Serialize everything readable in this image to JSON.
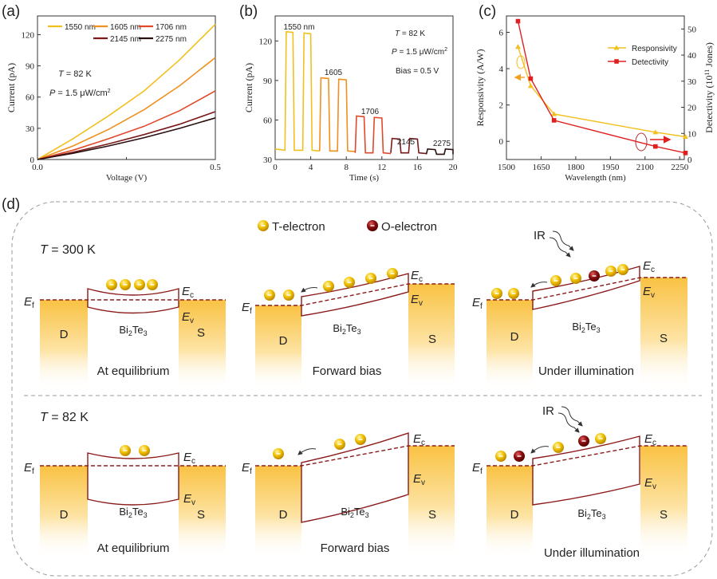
{
  "panel_labels": {
    "a": "(a)",
    "b": "(b)",
    "c": "(c)",
    "d": "(d)"
  },
  "chart_data": [
    {
      "type": "line",
      "xlabel": "Voltage (V)",
      "ylabel": "Current (pA)",
      "xlim": [
        0,
        0.5
      ],
      "ylim": [
        0,
        138
      ],
      "xticks": [
        0,
        0.5
      ],
      "xtick_labels": [
        "0.0",
        "0.5"
      ],
      "yticks": [
        0,
        30,
        60,
        90,
        120
      ],
      "grid": false,
      "legend": "top",
      "x": [
        0,
        0.1,
        0.2,
        0.3,
        0.4,
        0.5
      ],
      "series": [
        {
          "name": "1550 nm",
          "color": "#f2c01e",
          "values": [
            0,
            20,
            42,
            66,
            96,
            130
          ]
        },
        {
          "name": "1605 nm",
          "color": "#f0901e",
          "values": [
            0,
            13,
            29,
            48,
            71,
            98
          ]
        },
        {
          "name": "1706 nm",
          "color": "#e2482a",
          "values": [
            0,
            9,
            20,
            32,
            47,
            66
          ]
        },
        {
          "name": "2145 nm",
          "color": "#7a1a1a",
          "values": [
            0,
            7,
            15,
            24,
            34,
            46
          ]
        },
        {
          "name": "2275 nm",
          "color": "#2a1010",
          "values": [
            0,
            6,
            13,
            21,
            30,
            40
          ]
        }
      ],
      "annotations": [
        {
          "italic": "T",
          "text": " = 82 K"
        },
        {
          "italic": "P",
          "text": " = 1.5 μW/cm",
          "sup": "2"
        }
      ]
    },
    {
      "type": "line",
      "xlabel": "Time (s)",
      "ylabel": "Current (pA)",
      "xlim": [
        0,
        20
      ],
      "ylim": [
        30,
        139
      ],
      "xticks": [
        0,
        4,
        8,
        12,
        16,
        20
      ],
      "yticks": [
        30,
        60,
        90,
        120
      ],
      "grid": false,
      "series": [
        {
          "label": "1550 nm",
          "color": "#f2c01e",
          "t_range": [
            0,
            5
          ],
          "off_level": 37,
          "pulses": [
            {
              "on": 1.1,
              "off": 2.0,
              "level": 127
            },
            {
              "on": 3.1,
              "off": 4.0,
              "level": 126
            }
          ]
        },
        {
          "label": "1605",
          "color": "#f0901e",
          "t_range": [
            5,
            9
          ],
          "off_level": 36.5,
          "pulses": [
            {
              "on": 5.0,
              "off": 6.0,
              "level": 92
            },
            {
              "on": 7.0,
              "off": 8.0,
              "level": 91
            }
          ]
        },
        {
          "label": "1706",
          "color": "#e2482a",
          "t_range": [
            9,
            13
          ],
          "off_level": 35,
          "pulses": [
            {
              "on": 9.0,
              "off": 10.0,
              "level": 63
            },
            {
              "on": 11.0,
              "off": 12.0,
              "level": 62
            }
          ]
        },
        {
          "label": "2145",
          "color": "#7a1a1a",
          "t_range": [
            13,
            17
          ],
          "off_level": 35,
          "pulses": [
            {
              "on": 13.0,
              "off": 14.0,
              "level": 46
            },
            {
              "on": 15.0,
              "off": 16.0,
              "level": 46
            }
          ]
        },
        {
          "label": "2275",
          "color": "#2a1010",
          "t_range": [
            17,
            20
          ],
          "off_level": 34,
          "pulses": [
            {
              "on": 17.0,
              "off": 18.0,
              "level": 38
            },
            {
              "on": 19.0,
              "off": 20.0,
              "level": 38
            }
          ]
        }
      ],
      "annotations": [
        {
          "italic": "T",
          "text": " = 82 K"
        },
        {
          "italic": "P",
          "text": " = 1.5 μW/cm",
          "sup": "2"
        },
        {
          "italic": "",
          "text": "Bias = 0.5 V"
        }
      ]
    },
    {
      "type": "line",
      "xlabel": "Wavelength (nm)",
      "ylabel": "Responsivity (A/W)",
      "ylabel_right": {
        "pre": "Detectivity (10",
        "sup": "11",
        "post": " Jones)"
      },
      "xlim": [
        1500,
        2270
      ],
      "ylim": [
        -1,
        6.9
      ],
      "ylim_right": [
        0,
        55
      ],
      "xticks": [
        1500,
        1650,
        1800,
        1950,
        2100,
        2250
      ],
      "yticks": [
        0,
        2,
        4,
        6
      ],
      "yticks_right": [
        0,
        10,
        20,
        30,
        40,
        50
      ],
      "grid": false,
      "legend": "top-right",
      "x": [
        1550,
        1605,
        1706,
        2145,
        2275
      ],
      "series": [
        {
          "name": "Responsivity",
          "axis": "left",
          "marker": "triangle",
          "color": "#f2c01e",
          "values": [
            5.2,
            3.05,
            1.5,
            0.5,
            0.25
          ]
        },
        {
          "name": "Detectivity",
          "axis": "right",
          "marker": "square",
          "color": "#e02020",
          "values": [
            53,
            31,
            15,
            5,
            2.5
          ]
        }
      ]
    }
  ],
  "panel_d": {
    "legend": [
      {
        "label": "T-electron",
        "type": "T"
      },
      {
        "label": "O-electron",
        "type": "O"
      }
    ],
    "colors": {
      "T": "#f2c200",
      "O": "#8b1010",
      "band": "#8b1a1a",
      "contact": "#f9c243"
    },
    "labels": {
      "drain": "D",
      "source": "S",
      "material": {
        "el1": "Bi",
        "n1": "2",
        "el2": "Te",
        "n2": "3"
      },
      "E": "E",
      "f": "f",
      "c": "c",
      "v": "v",
      "ir": "IR"
    },
    "rows": [
      {
        "temp_symbol": "T",
        "temp_value": " = 300 K",
        "diagrams": [
          {
            "caption": "At equilibrium",
            "electrons": [
              "T",
              "T",
              "T",
              "T"
            ]
          },
          {
            "caption": "Forward bias",
            "electrons": [
              "T",
              "T",
              "T",
              "T",
              "T",
              "T"
            ]
          },
          {
            "caption": "Under illumination",
            "electrons": [
              "T",
              "T",
              "T",
              "T",
              "O",
              "T",
              "T"
            ]
          }
        ]
      },
      {
        "temp_symbol": "T",
        "temp_value": " = 82 K",
        "diagrams": [
          {
            "caption": "At equilibrium",
            "electrons": [
              "T",
              "T"
            ]
          },
          {
            "caption": "Forward bias",
            "electrons": [
              "T",
              "T",
              "T"
            ]
          },
          {
            "caption": "Under illumination",
            "electrons": [
              "T",
              "O",
              "T",
              "O",
              "T"
            ]
          }
        ]
      }
    ]
  }
}
